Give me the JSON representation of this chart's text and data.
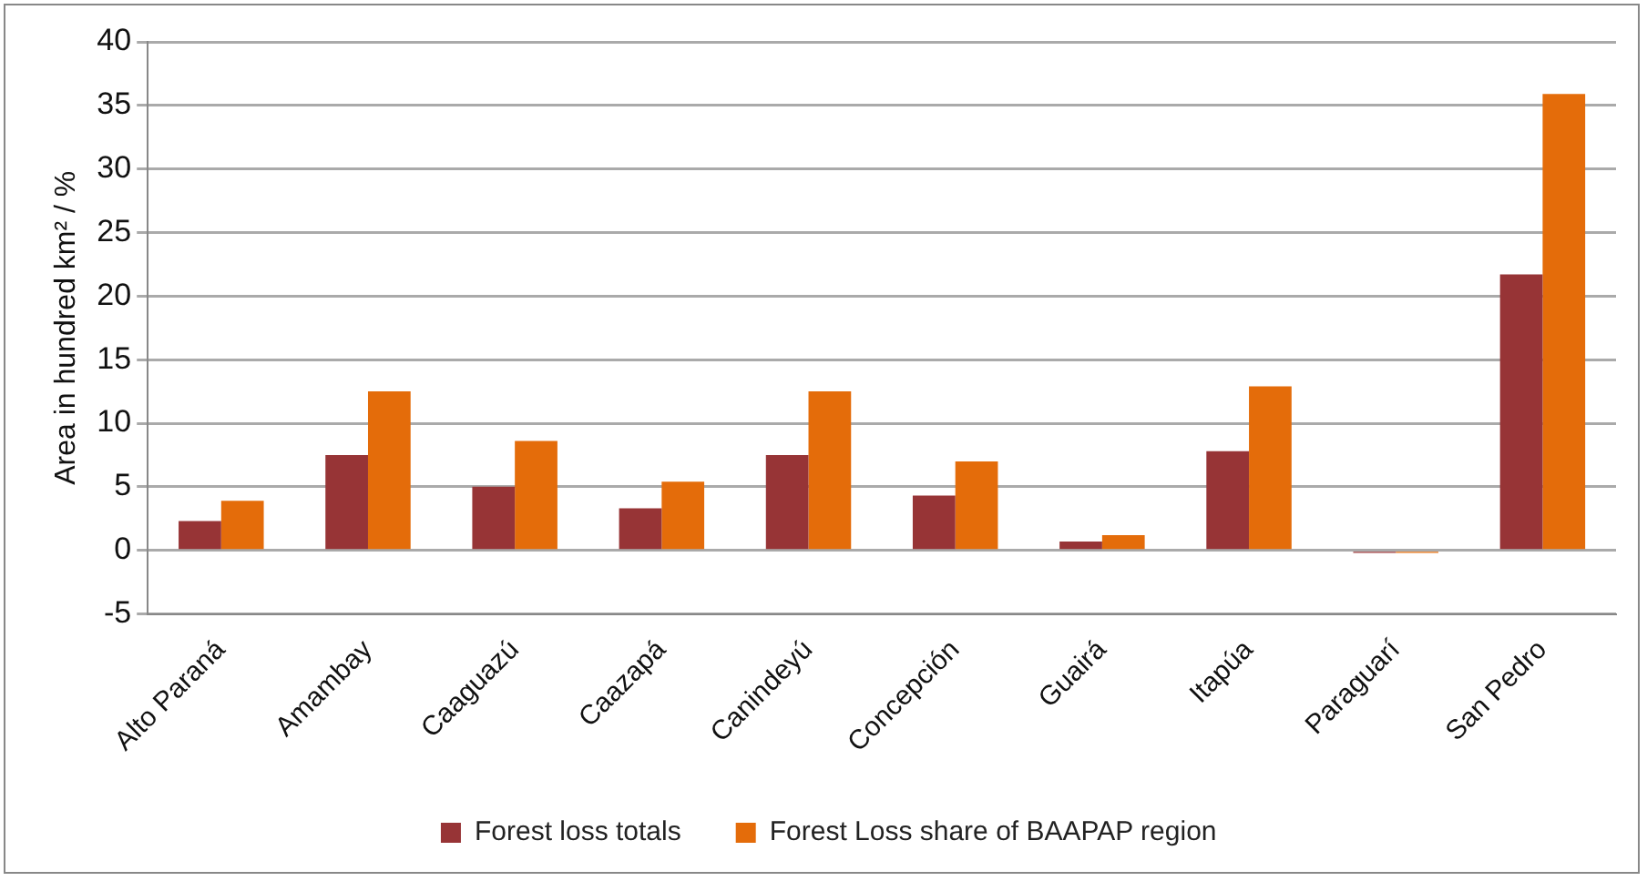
{
  "chart_data": {
    "type": "bar",
    "ylabel": "Area in hundred km² / %",
    "categories": [
      "Alto Paraná",
      "Amambay",
      "Caaguazú",
      "Caazapá",
      "Canindeyú",
      "Concepción",
      "Guairá",
      "Itapúa",
      "Paraguarí",
      "San Pedro"
    ],
    "series": [
      {
        "name": "Forest loss totals",
        "color": "#973436",
        "values": [
          2.3,
          7.5,
          5.0,
          3.3,
          7.5,
          4.3,
          0.7,
          7.8,
          -0.2,
          21.7
        ]
      },
      {
        "name": "Forest Loss share of BAAPAP region",
        "color": "#e46c0a",
        "values": [
          3.9,
          12.5,
          8.6,
          5.4,
          12.5,
          7.0,
          1.2,
          12.9,
          -0.2,
          35.9
        ]
      }
    ],
    "ylim": [
      -5,
      40
    ],
    "yticks": [
      -5,
      0,
      5,
      10,
      15,
      20,
      25,
      30,
      35,
      40
    ],
    "grid": "y",
    "legend": "bottom"
  }
}
